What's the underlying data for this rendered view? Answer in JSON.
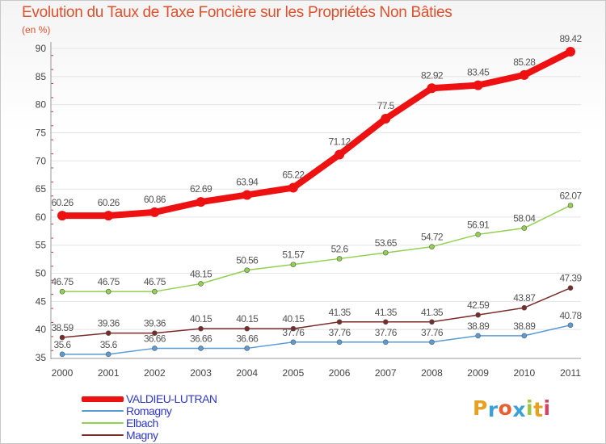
{
  "chart_data": {
    "type": "line",
    "title": "Evolution du Taux de Taxe Foncière sur les Propriétés Non Bâties",
    "subtitle": "(en %)",
    "ylim": [
      35,
      90
    ],
    "yticks": [
      35,
      40,
      45,
      50,
      55,
      60,
      65,
      70,
      75,
      80,
      85,
      90
    ],
    "categories": [
      "2000",
      "2001",
      "2002",
      "2003",
      "2004",
      "2005",
      "2006",
      "2007",
      "2008",
      "2009",
      "2010",
      "2011"
    ],
    "series": [
      {
        "name": "VALDIEU-LUTRAN",
        "color": "#ee1111",
        "values": [
          60.26,
          60.26,
          60.86,
          62.69,
          63.94,
          65.22,
          71.12,
          77.5,
          82.92,
          83.45,
          85.28,
          89.42
        ],
        "labels": [
          "60.26",
          "60.26",
          "60.86",
          "62.69",
          "63.94",
          "65.22",
          "71.12",
          "77.5",
          "82.92",
          "83.45",
          "85.28",
          "89.42"
        ]
      },
      {
        "name": "Romagny",
        "color": "#5b9bd5",
        "values": [
          35.6,
          35.6,
          36.66,
          36.66,
          36.66,
          37.76,
          37.76,
          37.76,
          37.76,
          38.89,
          38.89,
          40.78
        ],
        "labels": [
          "35.6",
          "35.6",
          "36.66",
          "36.66",
          "36.66",
          "37.76",
          "37.76",
          "37.76",
          "37.76",
          "38.89",
          "38.89",
          "40.78"
        ]
      },
      {
        "name": "Elbach",
        "color": "#92d050",
        "values": [
          46.75,
          46.75,
          46.75,
          48.15,
          50.56,
          51.57,
          52.6,
          53.65,
          54.72,
          56.91,
          58.04,
          62.07
        ],
        "labels": [
          "46.75",
          "46.75",
          "46.75",
          "48.15",
          "50.56",
          "51.57",
          "52.6",
          "53.65",
          "54.72",
          "56.91",
          "58.04",
          "62.07"
        ]
      },
      {
        "name": "Magny",
        "color": "#7b2a2a",
        "values": [
          38.59,
          39.36,
          39.36,
          40.15,
          40.15,
          40.15,
          41.35,
          41.35,
          41.35,
          42.59,
          43.87,
          47.39
        ],
        "labels": [
          "38.59",
          "39.36",
          "39.36",
          "40.15",
          "40.15",
          "40.15",
          "41.35",
          "41.35",
          "41.35",
          "42.59",
          "43.87",
          "47.39"
        ]
      }
    ]
  },
  "brand": {
    "letters": [
      "P",
      "r",
      "o",
      "x",
      "i",
      "t",
      "i"
    ],
    "colors": [
      "#e8a020",
      "#3aa0d8",
      "#e86030",
      "#3aa0d8",
      "#9ac840",
      "#e8a020",
      "#d84060"
    ]
  }
}
